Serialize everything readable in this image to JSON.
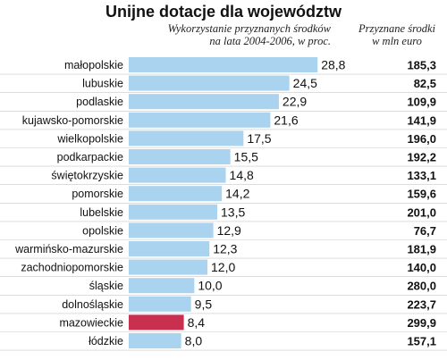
{
  "chart_data": {
    "type": "bar",
    "orientation": "horizontal",
    "title": "Unijne dotacje dla województw",
    "subtitle_left": "Wykorzystanie przyznanych środków na lata 2004-2006, w proc.",
    "subtitle_left_lines": [
      "Wykorzystanie przyznanych środków",
      "na lata 2004-2006, w proc."
    ],
    "subtitle_right": "Przyznane środki w mln euro",
    "subtitle_right_lines": [
      "Przyznane środki",
      "w mln euro"
    ],
    "categories": [
      "małopolskie",
      "lubuskie",
      "podlaskie",
      "kujawsko-pomorskie",
      "wielkopolskie",
      "podkarpackie",
      "świętokrzyskie",
      "pomorskie",
      "lubelskie",
      "opolskie",
      "warmińsko-mazurskie",
      "zachodniopomorskie",
      "śląskie",
      "dolnośląskie",
      "mazowieckie",
      "łódzkie"
    ],
    "values": [
      28.8,
      24.5,
      22.9,
      21.6,
      17.5,
      15.5,
      14.8,
      14.2,
      13.5,
      12.9,
      12.3,
      12.0,
      10.0,
      9.5,
      8.4,
      8.0
    ],
    "value_labels": [
      "28,8",
      "24,5",
      "22,9",
      "21,6",
      "17,5",
      "15,5",
      "14,8",
      "14,2",
      "13,5",
      "12,9",
      "12,3",
      "12,0",
      "10,0",
      "9,5",
      "8,4",
      "8,0"
    ],
    "secondary_values": [
      185.3,
      82.5,
      109.9,
      141.9,
      196.0,
      192.2,
      133.1,
      159.6,
      201.0,
      76.7,
      181.9,
      140.0,
      280.0,
      223.7,
      299.9,
      157.1
    ],
    "secondary_labels": [
      "185,3",
      "82,5",
      "109,9",
      "141,9",
      "196,0",
      "192,2",
      "133,1",
      "159,6",
      "201,0",
      "76,7",
      "181,9",
      "140,0",
      "280,0",
      "223,7",
      "299,9",
      "157,1"
    ],
    "highlight_category": "mazowieckie",
    "xlim": [
      0,
      30
    ],
    "grid": false,
    "legend": "none",
    "colors": {
      "bar": "#a9d3ef",
      "highlight": "#c9304f",
      "separator": "#c8c8c8",
      "text": "#111111"
    }
  }
}
